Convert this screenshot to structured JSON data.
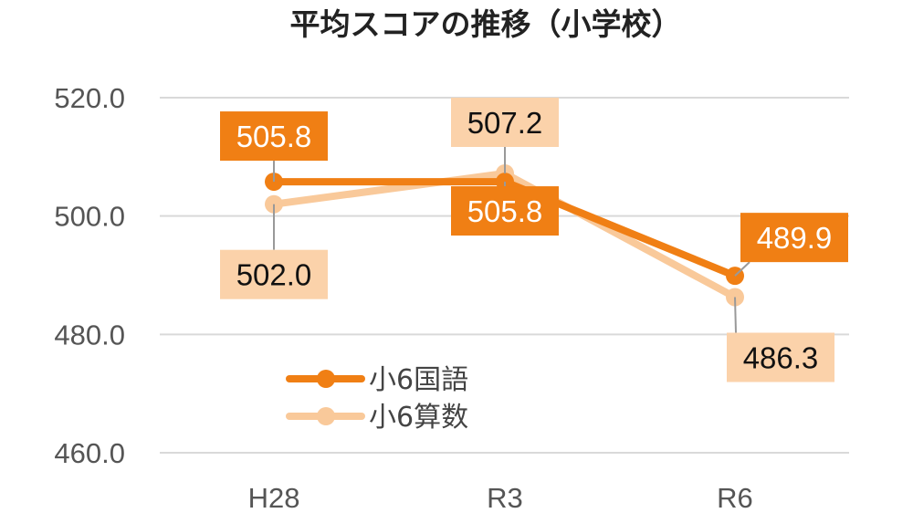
{
  "chart_data": {
    "type": "line",
    "title": "平均スコアの推移（小学校）",
    "categories": [
      "H28",
      "R3",
      "R6"
    ],
    "ylim": [
      460,
      520
    ],
    "yticks": [
      "520.0",
      "500.0",
      "480.0",
      "460.0"
    ],
    "ytick_values": [
      520,
      500,
      480,
      460
    ],
    "grid": true,
    "legend_position": "bottom-left",
    "series": [
      {
        "name": "小6国語",
        "color": "#F07F14",
        "label_bg": "#F07F14",
        "label_text": "#ffffff",
        "values": [
          505.8,
          505.8,
          489.9
        ],
        "labels": [
          "505.8",
          "505.8",
          "489.9"
        ]
      },
      {
        "name": "小6算数",
        "color": "#F9C99A",
        "label_bg": "#FBD2AA",
        "label_text": "#111111",
        "values": [
          502.0,
          507.2,
          486.3
        ],
        "labels": [
          "502.0",
          "507.2",
          "486.3"
        ]
      }
    ]
  }
}
